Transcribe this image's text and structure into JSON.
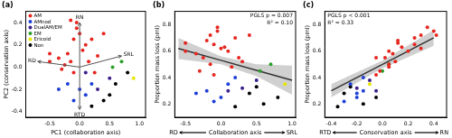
{
  "chart_data": [
    {
      "type": "scatter",
      "title": "(a)",
      "xlabel": "PC1 (collaboration axis)",
      "ylabel": "PC2 (conservation axis)",
      "xlim": [
        -0.9,
        1.1
      ],
      "xticks": [
        -0.5,
        {
          "value": 0,
          "label": "0.0"
        },
        0.5,
        {
          "value": 1,
          "label": "1.0"
        }
      ],
      "ylim": [
        -0.45,
        0.5
      ],
      "yticks": [
        -0.4,
        -0.2,
        {
          "value": 0,
          "label": "0.0"
        },
        0.2,
        0.4
      ],
      "grid": false,
      "legend": "upper left",
      "marker": "circle",
      "series": [
        {
          "name": "AM",
          "color": "#e6261f",
          "x": [
            -0.15,
            -0.2,
            -0.05,
            -0.1,
            0.0,
            0.1,
            -0.35,
            -0.25,
            -0.15,
            0.05,
            0.2,
            0.3,
            -0.5,
            -0.05,
            0.15,
            -0.3,
            0.4,
            -0.1,
            0.25,
            -0.5
          ],
          "values": [
            0.42,
            0.12,
            0.4,
            0.25,
            0.3,
            0.2,
            0.08,
            0.02,
            0.05,
            0.15,
            0.25,
            0.1,
            0.12,
            0.35,
            0.05,
            -0.02,
            0.3,
            -0.05,
            -0.05,
            0.05
          ]
        },
        {
          "name": "AMnod",
          "color": "#1f3fd6",
          "x": [
            -0.2,
            0.0,
            0.1,
            -0.1,
            0.2,
            -0.35
          ],
          "values": [
            -0.15,
            -0.2,
            -0.25,
            -0.3,
            -0.15,
            -0.2
          ]
        },
        {
          "name": "DualAM/EM",
          "color": "#3b1f8c",
          "x": [
            0.3,
            0.5,
            0.1
          ],
          "values": [
            -0.2,
            -0.1,
            -0.05
          ]
        },
        {
          "name": "EM",
          "color": "#2ca02c",
          "x": [
            0.55,
            0.7
          ],
          "values": [
            0.0,
            0.05
          ]
        },
        {
          "name": "Ericoid",
          "color": "#e6e600",
          "x": [
            0.9
          ],
          "values": [
            -0.1
          ]
        },
        {
          "name": "Non",
          "color": "#000000",
          "x": [
            0.4,
            0.6,
            0.2,
            0.8,
            0.5
          ],
          "values": [
            -0.3,
            -0.15,
            -0.35,
            -0.05,
            -0.25
          ]
        }
      ],
      "arrows": [
        {
          "label": "RN",
          "x": 0.0,
          "y": 0.4
        },
        {
          "label": "RD",
          "x": -0.7,
          "y": 0.05
        },
        {
          "label": "SRL",
          "x": 0.7,
          "y": 0.1
        },
        {
          "label": "RTD",
          "x": 0.0,
          "y": -0.38
        }
      ]
    },
    {
      "type": "scatter",
      "title": "(b)",
      "xlabel": "Collaboration axis",
      "ylabel": "Proportion mass loss (pml)",
      "xlim": [
        -0.65,
        1.05
      ],
      "xticks": [
        -0.5,
        {
          "value": 0,
          "label": "0.0"
        },
        0.5,
        {
          "value": 1,
          "label": "1.0"
        }
      ],
      "ylim": [
        0.1,
        0.9
      ],
      "yticks": [
        0.2,
        0.4,
        0.6,
        0.8
      ],
      "grid": false,
      "marker": "circle",
      "annotations": [
        "PGLS p = 0.007",
        "R² = 0.10"
      ],
      "x_end_labels": [
        "RD",
        "SRL"
      ],
      "series": [
        {
          "color": "#e6261f",
          "x": [
            -0.15,
            -0.2,
            -0.05,
            -0.1,
            0.0,
            0.1,
            -0.35,
            -0.25,
            -0.15,
            0.05,
            0.2,
            0.3,
            -0.5,
            -0.05,
            0.15,
            -0.3,
            0.4,
            -0.1,
            0.25,
            -0.5
          ],
          "values": [
            0.72,
            0.68,
            0.75,
            0.65,
            0.62,
            0.6,
            0.58,
            0.55,
            0.5,
            0.63,
            0.7,
            0.52,
            0.66,
            0.78,
            0.48,
            0.45,
            0.72,
            0.42,
            0.55,
            0.6
          ]
        },
        {
          "color": "#1f3fd6",
          "x": [
            -0.2,
            0.0,
            0.1,
            -0.1,
            0.2,
            -0.35
          ],
          "values": [
            0.3,
            0.25,
            0.35,
            0.22,
            0.4,
            0.28
          ]
        },
        {
          "color": "#3b1f8c",
          "x": [
            0.3,
            0.5,
            0.1
          ],
          "values": [
            0.32,
            0.38,
            0.3
          ]
        },
        {
          "color": "#2ca02c",
          "x": [
            0.55,
            0.7
          ],
          "values": [
            0.45,
            0.5
          ]
        },
        {
          "color": "#e6e600",
          "x": [
            0.9
          ],
          "values": [
            0.35
          ]
        },
        {
          "color": "#000000",
          "x": [
            0.4,
            0.6,
            0.2,
            0.8,
            0.5
          ],
          "values": [
            0.28,
            0.2,
            0.18,
            0.25,
            0.33
          ]
        },
        {
          "type": "line",
          "color": "#333333",
          "x": [
            -0.6,
            0.0,
            0.5,
            1.0
          ],
          "values": [
            0.62,
            0.53,
            0.455,
            0.38
          ],
          "band": {
            "lower": [
              0.54,
              0.5,
              0.41,
              0.27
            ],
            "upper": [
              0.7,
              0.56,
              0.5,
              0.49
            ]
          }
        }
      ]
    },
    {
      "type": "scatter",
      "title": "(c)",
      "xlabel": "Conservation axis",
      "ylabel": "Proportion mass loss (pml)",
      "xlim": [
        -0.45,
        0.5
      ],
      "xticks": [
        -0.4,
        -0.2,
        {
          "value": 0,
          "label": "0.0"
        },
        0.2,
        0.4
      ],
      "ylim": [
        0.1,
        0.9
      ],
      "yticks": [
        0.2,
        0.4,
        0.6,
        0.8
      ],
      "grid": false,
      "marker": "circle",
      "annotations": [
        "PGLS p < 0.001",
        "R² = 0.33"
      ],
      "x_end_labels": [
        "RTD",
        "RN"
      ],
      "series": [
        {
          "color": "#e6261f",
          "x": [
            0.42,
            0.12,
            0.4,
            0.25,
            0.3,
            0.2,
            0.08,
            0.02,
            0.05,
            0.15,
            0.25,
            0.1,
            0.12,
            0.35,
            0.05,
            -0.02,
            0.3,
            -0.05,
            -0.05,
            0.05
          ],
          "values": [
            0.72,
            0.68,
            0.75,
            0.65,
            0.62,
            0.6,
            0.58,
            0.55,
            0.5,
            0.63,
            0.7,
            0.52,
            0.66,
            0.78,
            0.48,
            0.45,
            0.72,
            0.42,
            0.55,
            0.6
          ]
        },
        {
          "color": "#1f3fd6",
          "x": [
            -0.15,
            -0.2,
            -0.25,
            -0.3,
            -0.15,
            -0.2
          ],
          "values": [
            0.3,
            0.25,
            0.35,
            0.22,
            0.4,
            0.28
          ]
        },
        {
          "color": "#3b1f8c",
          "x": [
            -0.2,
            -0.1,
            -0.05
          ],
          "values": [
            0.32,
            0.38,
            0.3
          ]
        },
        {
          "color": "#2ca02c",
          "x": [
            0.0,
            0.05
          ],
          "values": [
            0.45,
            0.5
          ]
        },
        {
          "color": "#e6e600",
          "x": [
            -0.1
          ],
          "values": [
            0.35
          ]
        },
        {
          "color": "#000000",
          "x": [
            -0.3,
            -0.15,
            -0.35,
            -0.05,
            -0.25
          ],
          "values": [
            0.28,
            0.2,
            0.18,
            0.25,
            0.33
          ]
        },
        {
          "type": "line",
          "color": "#333333",
          "x": [
            -0.4,
            0.0,
            0.4
          ],
          "values": [
            0.3,
            0.5,
            0.7
          ],
          "band": {
            "lower": [
              0.25,
              0.47,
              0.64
            ],
            "upper": [
              0.35,
              0.53,
              0.76
            ]
          }
        }
      ]
    }
  ]
}
